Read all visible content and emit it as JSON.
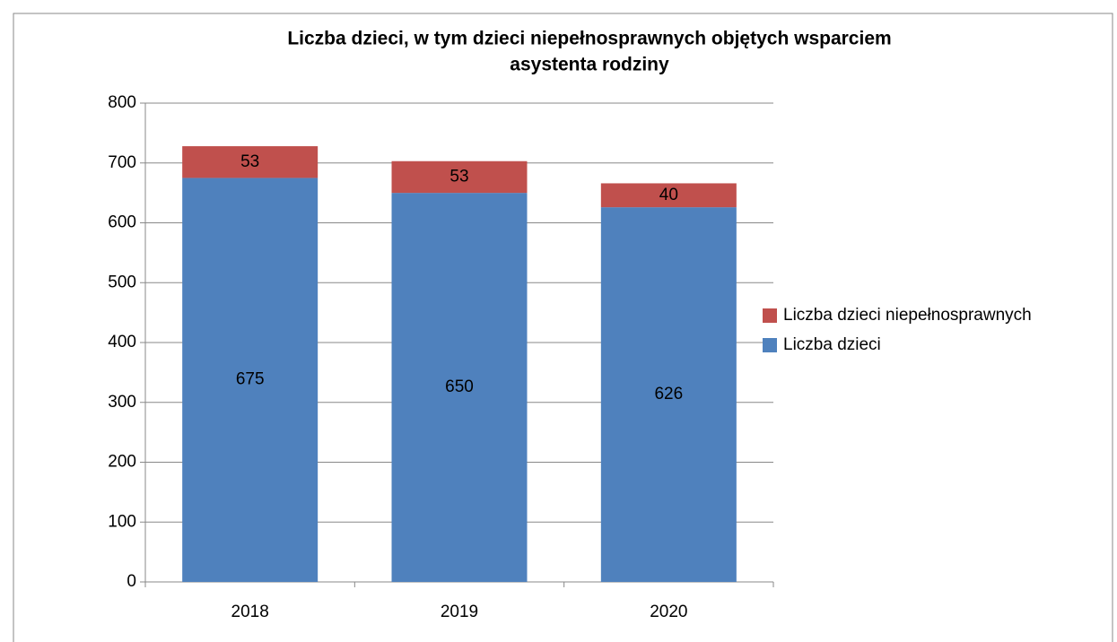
{
  "chart_data": {
    "type": "bar",
    "stacked": true,
    "title": [
      "Liczba dzieci, w tym dzieci niepełnosprawnych objętych wsparciem",
      "asystenta rodziny"
    ],
    "categories": [
      "2018",
      "2019",
      "2020"
    ],
    "series": [
      {
        "name": "Liczba dzieci",
        "color": "#4f81bd",
        "values": [
          675,
          650,
          626
        ]
      },
      {
        "name": "Liczba dzieci niepełnosprawnych",
        "color": "#c0504d",
        "values": [
          53,
          53,
          40
        ]
      }
    ],
    "ylim": [
      0,
      800
    ],
    "yticks": [
      0,
      100,
      200,
      300,
      400,
      500,
      600,
      700,
      800
    ],
    "grid": true,
    "legend": "right"
  }
}
